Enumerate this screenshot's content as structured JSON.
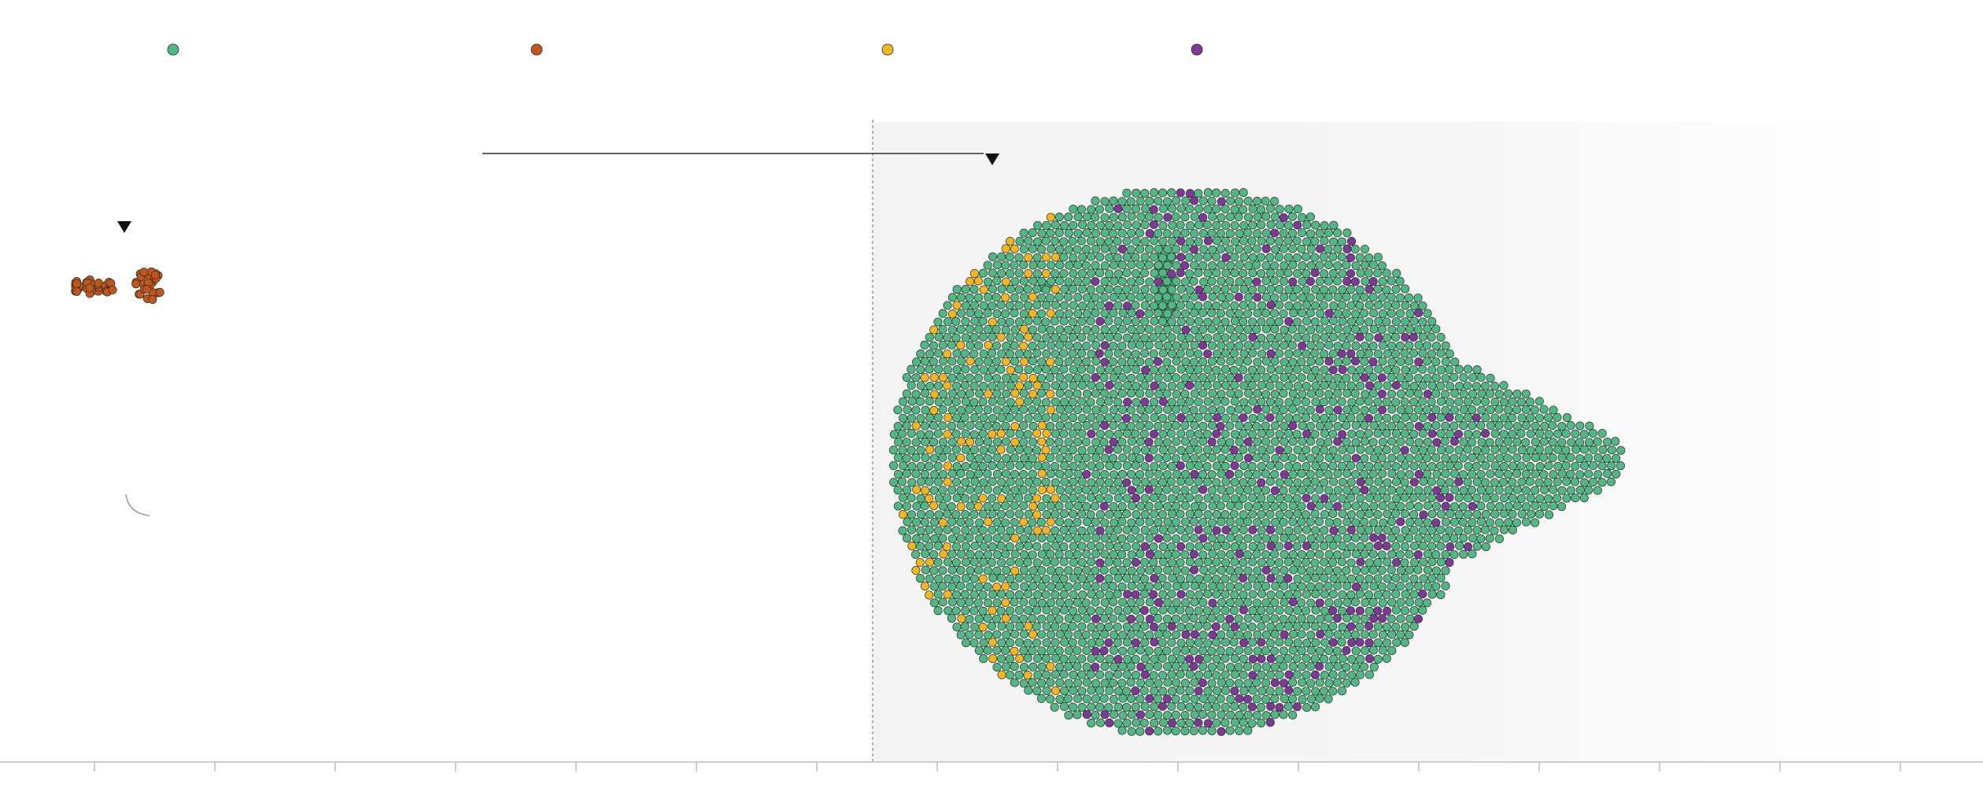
{
  "chart_data": {
    "type": "scatter",
    "subtype": "beeswarm",
    "title": "",
    "xlabel": "",
    "ylabel": "",
    "grid": false,
    "legend_placement": "top",
    "shaded_region": true,
    "colors": {
      "green": "#4fb883",
      "orange": "#c0561a",
      "yellow": "#f0b81e",
      "purple": "#7b3a96",
      "stroke": "#2e2e2e",
      "axis": "#cccccc",
      "shade": "#f2f2f2",
      "marker": "#111111",
      "connector": "#333333",
      "guide": "#999999"
    },
    "legend": [
      {
        "color": "green",
        "label": ""
      },
      {
        "color": "orange",
        "label": ""
      },
      {
        "color": "yellow",
        "label": ""
      },
      {
        "color": "purple",
        "label": ""
      }
    ],
    "groups": [
      {
        "color": "orange",
        "count": 14,
        "cx": 98,
        "cy": 364,
        "rx": 2,
        "ry": 10
      },
      {
        "color": "orange",
        "count": 14,
        "cx": 118,
        "cy": 364,
        "rx": 7,
        "ry": 12
      },
      {
        "color": "orange",
        "count": 8,
        "cx": 140,
        "cy": 364,
        "rx": 5,
        "ry": 10
      },
      {
        "color": "orange",
        "count": 26,
        "cx": 190,
        "cy": 362,
        "rx": 14,
        "ry": 20
      },
      {
        "color": "green",
        "count": 2,
        "cx": 1328,
        "cy": 362,
        "rx": 5,
        "ry": 4
      },
      {
        "color": "green",
        "count": 60,
        "cx": 1481,
        "cy": 362,
        "rx": 10,
        "ry": 50
      }
    ],
    "main_cluster": {
      "count": 1900,
      "yellow_share": 0.03,
      "purple_share": 0.1
    }
  }
}
